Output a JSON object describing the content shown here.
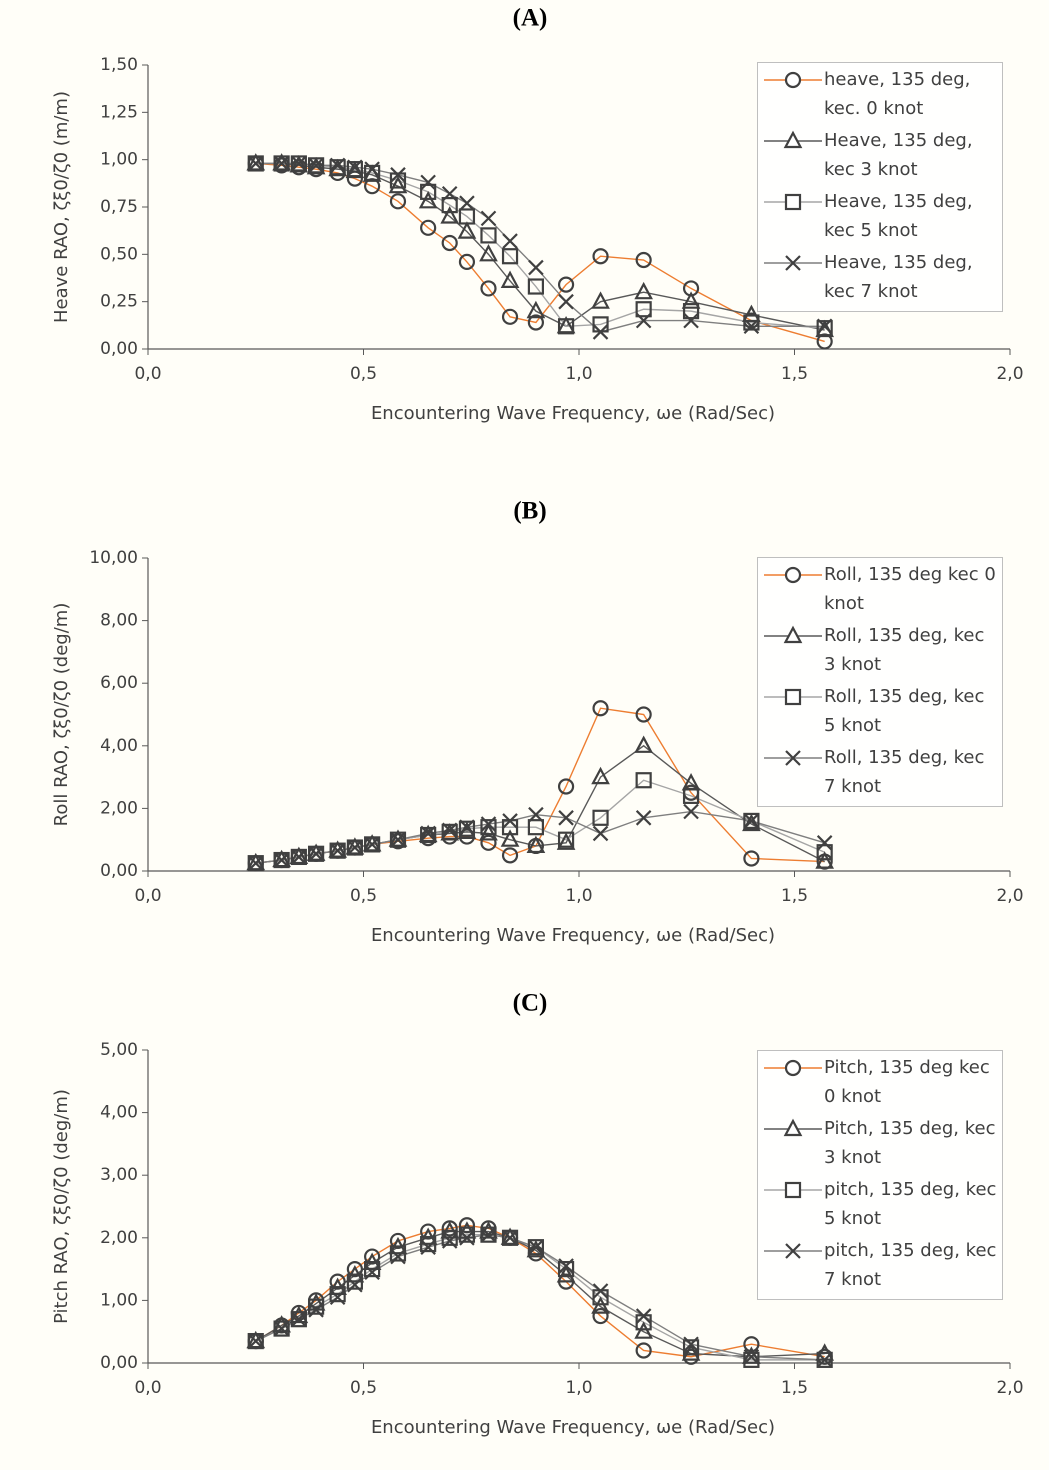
{
  "chart_data": [
    {
      "type": "scatter",
      "title": "(A)",
      "ylabel": "Heave RAO, ζξ0/ζ0 (m/m)",
      "xlabel": "Encountering Wave Frequency, ωe (Rad/Sec)",
      "x": [
        0.25,
        0.31,
        0.35,
        0.39,
        0.44,
        0.48,
        0.52,
        0.58,
        0.65,
        0.7,
        0.74,
        0.79,
        0.84,
        0.9,
        0.97,
        1.05,
        1.15,
        1.26,
        1.4,
        1.57
      ],
      "xlim": [
        0,
        2
      ],
      "ylim": [
        0,
        1.5
      ],
      "xticks": [
        {
          "value": 0,
          "label": "0,0"
        },
        {
          "value": 0.5,
          "label": "0,5"
        },
        {
          "value": 1,
          "label": "1,0"
        },
        {
          "value": 1.5,
          "label": "1,5"
        },
        {
          "value": 2,
          "label": "2,0"
        }
      ],
      "yticks": [
        {
          "value": 0,
          "label": "0,00"
        },
        {
          "value": 0.25,
          "label": "0,25"
        },
        {
          "value": 0.5,
          "label": "0,50"
        },
        {
          "value": 0.75,
          "label": "0,75"
        },
        {
          "value": 1,
          "label": "1,00"
        },
        {
          "value": 1.25,
          "label": "1,25"
        },
        {
          "value": 1.5,
          "label": "1,50"
        }
      ],
      "series": [
        {
          "name": "heave, 135 deg, kec. 0 knot",
          "color": "#ed7d31",
          "marker": "circle",
          "values": [
            0.98,
            0.97,
            0.96,
            0.95,
            0.93,
            0.9,
            0.86,
            0.78,
            0.64,
            0.56,
            0.46,
            0.32,
            0.17,
            0.14,
            0.34,
            0.49,
            0.47,
            0.32,
            0.15,
            0.04
          ]
        },
        {
          "name": "Heave, 135 deg, kec 3 knot",
          "color": "#595959",
          "marker": "triangle",
          "values": [
            0.98,
            0.98,
            0.97,
            0.96,
            0.95,
            0.94,
            0.92,
            0.86,
            0.78,
            0.7,
            0.62,
            0.5,
            0.36,
            0.2,
            0.12,
            0.25,
            0.3,
            0.25,
            0.18,
            0.1
          ]
        },
        {
          "name": "Heave, 135 deg, kec 5 knot",
          "color": "#a5a5a5",
          "marker": "square",
          "values": [
            0.98,
            0.98,
            0.98,
            0.97,
            0.96,
            0.95,
            0.93,
            0.89,
            0.83,
            0.76,
            0.7,
            0.6,
            0.49,
            0.33,
            0.12,
            0.13,
            0.21,
            0.2,
            0.14,
            0.11
          ]
        },
        {
          "name": "Heave, 135 deg, kec 7 knot",
          "color": "#7f7f7f",
          "marker": "x",
          "values": [
            0.98,
            0.98,
            0.98,
            0.97,
            0.97,
            0.96,
            0.95,
            0.92,
            0.88,
            0.82,
            0.77,
            0.69,
            0.57,
            0.43,
            0.25,
            0.09,
            0.15,
            0.15,
            0.12,
            0.12
          ]
        }
      ]
    },
    {
      "type": "scatter",
      "title": "(B)",
      "ylabel": "Roll RAO, ζξ0/ζ0 (deg/m)",
      "xlabel": "Encountering Wave Frequency, ωe (Rad/Sec)",
      "x": [
        0.25,
        0.31,
        0.35,
        0.39,
        0.44,
        0.48,
        0.52,
        0.58,
        0.65,
        0.7,
        0.74,
        0.79,
        0.84,
        0.9,
        0.97,
        1.05,
        1.15,
        1.26,
        1.4,
        1.57
      ],
      "xlim": [
        0,
        2
      ],
      "ylim": [
        0,
        10
      ],
      "xticks": [
        {
          "value": 0,
          "label": "0,0"
        },
        {
          "value": 0.5,
          "label": "0,5"
        },
        {
          "value": 1,
          "label": "1,0"
        },
        {
          "value": 1.5,
          "label": "1,5"
        },
        {
          "value": 2,
          "label": "2,0"
        }
      ],
      "yticks": [
        {
          "value": 0,
          "label": "0,00"
        },
        {
          "value": 2,
          "label": "2,00"
        },
        {
          "value": 4,
          "label": "4,00"
        },
        {
          "value": 6,
          "label": "6,00"
        },
        {
          "value": 8,
          "label": "8,00"
        },
        {
          "value": 10,
          "label": "10,00"
        }
      ],
      "series": [
        {
          "name": "Roll, 135 deg kec 0 knot",
          "color": "#ed7d31",
          "marker": "circle",
          "values": [
            0.25,
            0.35,
            0.45,
            0.55,
            0.65,
            0.75,
            0.85,
            0.95,
            1.05,
            1.1,
            1.1,
            0.9,
            0.5,
            0.8,
            2.7,
            5.2,
            5.0,
            2.5,
            0.4,
            0.3
          ]
        },
        {
          "name": "Roll, 135 deg, kec 3 knot",
          "color": "#595959",
          "marker": "triangle",
          "values": [
            0.25,
            0.35,
            0.45,
            0.55,
            0.65,
            0.75,
            0.85,
            1.0,
            1.15,
            1.2,
            1.25,
            1.2,
            1.0,
            0.8,
            0.9,
            3.0,
            4.0,
            2.8,
            1.5,
            0.3
          ]
        },
        {
          "name": "Roll, 135 deg, kec 5 knot",
          "color": "#a5a5a5",
          "marker": "square",
          "values": [
            0.25,
            0.35,
            0.45,
            0.55,
            0.65,
            0.75,
            0.85,
            1.0,
            1.15,
            1.25,
            1.35,
            1.4,
            1.4,
            1.4,
            1.0,
            1.7,
            2.9,
            2.4,
            1.6,
            0.6
          ]
        },
        {
          "name": "Roll, 135 deg, kec 7 knot",
          "color": "#7f7f7f",
          "marker": "x",
          "values": [
            0.25,
            0.35,
            0.45,
            0.55,
            0.65,
            0.75,
            0.85,
            1.0,
            1.2,
            1.3,
            1.4,
            1.5,
            1.6,
            1.8,
            1.7,
            1.2,
            1.7,
            1.9,
            1.6,
            0.9
          ]
        }
      ]
    },
    {
      "type": "scatter",
      "title": "(C)",
      "ylabel": "Pitch RAO, ζξ0/ζ0 (deg/m)",
      "xlabel": "Encountering Wave Frequency, ωe (Rad/Sec)",
      "x": [
        0.25,
        0.31,
        0.35,
        0.39,
        0.44,
        0.48,
        0.52,
        0.58,
        0.65,
        0.7,
        0.74,
        0.79,
        0.84,
        0.9,
        0.97,
        1.05,
        1.15,
        1.26,
        1.4,
        1.57
      ],
      "xlim": [
        0,
        2
      ],
      "ylim": [
        0,
        5
      ],
      "xticks": [
        {
          "value": 0,
          "label": "0,0"
        },
        {
          "value": 0.5,
          "label": "0,5"
        },
        {
          "value": 1,
          "label": "1,0"
        },
        {
          "value": 1.5,
          "label": "1,5"
        },
        {
          "value": 2,
          "label": "2,0"
        }
      ],
      "yticks": [
        {
          "value": 0,
          "label": "0,00"
        },
        {
          "value": 1,
          "label": "1,00"
        },
        {
          "value": 2,
          "label": "2,00"
        },
        {
          "value": 3,
          "label": "3,00"
        },
        {
          "value": 4,
          "label": "4,00"
        },
        {
          "value": 5,
          "label": "5,00"
        }
      ],
      "series": [
        {
          "name": "Pitch, 135 deg kec 0 knot",
          "color": "#ed7d31",
          "marker": "circle",
          "values": [
            0.35,
            0.6,
            0.8,
            1.0,
            1.3,
            1.5,
            1.7,
            1.95,
            2.1,
            2.15,
            2.2,
            2.15,
            2.0,
            1.75,
            1.3,
            0.75,
            0.2,
            0.1,
            0.3,
            0.1
          ]
        },
        {
          "name": "Pitch, 135 deg, kec 3 knot",
          "color": "#595959",
          "marker": "triangle",
          "values": [
            0.35,
            0.6,
            0.75,
            0.95,
            1.2,
            1.4,
            1.6,
            1.85,
            2.0,
            2.1,
            2.1,
            2.1,
            2.0,
            1.8,
            1.4,
            0.9,
            0.5,
            0.15,
            0.1,
            0.15
          ]
        },
        {
          "name": "pitch, 135 deg, kec 5 knot",
          "color": "#a5a5a5",
          "marker": "square",
          "values": [
            0.35,
            0.55,
            0.7,
            0.9,
            1.1,
            1.3,
            1.5,
            1.75,
            1.9,
            2.0,
            2.05,
            2.05,
            2.0,
            1.85,
            1.5,
            1.05,
            0.65,
            0.25,
            0.05,
            0.05
          ]
        },
        {
          "name": "pitch, 135 deg, kec 7 knot",
          "color": "#7f7f7f",
          "marker": "x",
          "values": [
            0.35,
            0.55,
            0.7,
            0.85,
            1.05,
            1.25,
            1.45,
            1.7,
            1.85,
            1.95,
            2.0,
            2.05,
            2.0,
            1.85,
            1.55,
            1.15,
            0.75,
            0.3,
            0.1,
            0.05
          ]
        }
      ]
    }
  ]
}
